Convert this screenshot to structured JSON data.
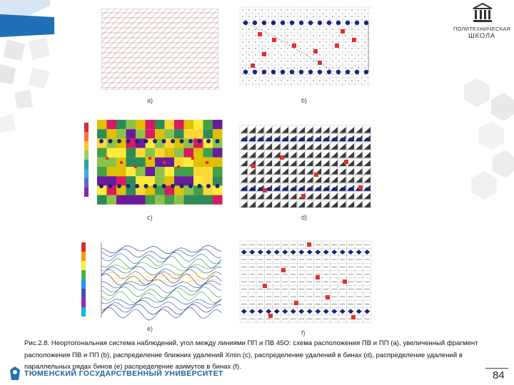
{
  "caption": "Рис.2.8. Неортогональная система наблюдений, угол между линиями ПП и ПВ 45О: схема расположения ПВ и ПП (а), увеличенный фрагмент расположения ПВ и ПП (b), распределение ближних удалений Xmin (c), распределение удалений в бинах (d), распределение удалений в параллельных рядах бинов (e) распределение азимутов в бинах (f).",
  "school": {
    "line1": "ПОЛИТЕХНИЧЕСКАЯ",
    "line2": "ШКОЛА"
  },
  "university": "ТЮМЕНСКИЙ ГОСУДАРСТВЕННЫЙ УНИВЕРСИТЕТ",
  "page_number": "84",
  "figures": {
    "a": {
      "label": "a)"
    },
    "b": {
      "label": "b)"
    },
    "c": {
      "label": "c)"
    },
    "d": {
      "label": "d)"
    },
    "e": {
      "label": "e)"
    },
    "f": {
      "label": "f)"
    }
  },
  "colors": {
    "blue_accent": "#1f6fb8",
    "red_marker": "#e03030",
    "navy_marker": "#1a237e"
  }
}
